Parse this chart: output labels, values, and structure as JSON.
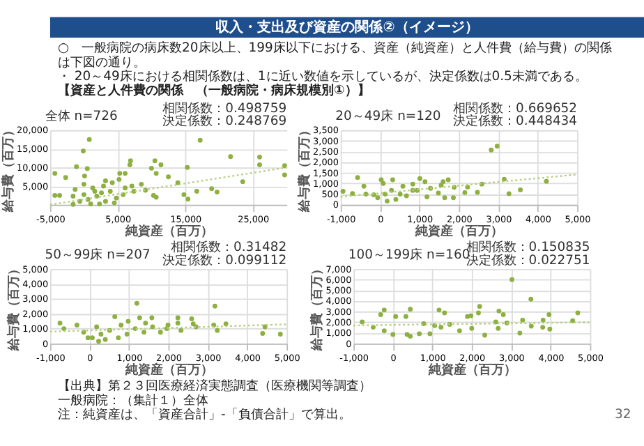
{
  "chart_data": [
    {
      "type": "other",
      "title": "収入・支出及び資産の関係②（イメージ）",
      "annotations": [
        "○　一般病院の病床数20床以上、199床以下における、資産（純資産）と人件費（給与費）の関係は下図の通り。",
        "・ 20～49床における相関係数は、1に近い数値を示しているが、決定係数は0.5未満である。",
        "【資産と人件費の関係　（一般病院・病床規模別①）】",
        "【出典】第２３回医療経済実態調査（医療機関等調査）",
        "一般病院：（集計１）全体",
        "注：純資産は、「資産合計」-「負債合計」で算出。",
        "32"
      ]
    },
    {
      "type": "scatter",
      "title": "全体 n=726",
      "annotations": [
        "相関係数：0.498759",
        "決定係数：0.248769"
      ],
      "xlabel": "純資産（百万）",
      "ylabel": "給与費（百万）",
      "xlim": [
        -5000,
        30000
      ],
      "xticks": [
        {
          "value": -5000,
          "label": "-5,000"
        },
        {
          "value": 5000,
          "label": "5,000"
        },
        {
          "value": 15000,
          "label": "15,000"
        },
        {
          "value": 25000,
          "label": "25,000"
        }
      ],
      "ylim": [
        0,
        20000
      ],
      "yticks": [
        {
          "value": 5000,
          "label": "5,000"
        },
        {
          "value": 10000,
          "label": "10,000"
        },
        {
          "value": 15000,
          "label": "15,000"
        },
        {
          "value": 20000,
          "label": "20,000"
        }
      ],
      "grid": true,
      "series": [
        {
          "type": "scatter",
          "color": "#8db040",
          "marker": "circle",
          "x": [
            800,
            -100,
            17200,
            -4300,
            -2700,
            -4300,
            -3600,
            21700,
            26000,
            26000,
            29700,
            29700,
            15300,
            23500,
            18900,
            19700,
            16700,
            14800,
            15400,
            13900,
            12500,
            10500,
            11400,
            10000,
            10700,
            10300,
            10700,
            6900,
            6800,
            5300,
            6100,
            8500,
            9100,
            7400,
            -1100,
            500,
            100,
            5200,
            3200,
            -600,
            600,
            1900,
            2600,
            3900,
            1300,
            0,
            -1300,
            -1600,
            3200,
            4800,
            5800,
            -1600,
            1000,
            2300,
            4500,
            0,
            1600,
            2900,
            4200,
            6100,
            7100
          ],
          "values": [
            17500,
            14400,
            17300,
            8400,
            7300,
            2500,
            2500,
            12900,
            12800,
            10700,
            10500,
            8000,
            10000,
            6200,
            4300,
            3400,
            3600,
            2700,
            1500,
            5900,
            7500,
            11800,
            10700,
            9800,
            8400,
            2500,
            2000,
            11800,
            10700,
            8400,
            8400,
            5500,
            3900,
            3600,
            10200,
            9700,
            7700,
            6800,
            6400,
            900,
            1400,
            2300,
            3200,
            3600,
            4500,
            5500,
            4100,
            2300,
            900,
            1800,
            2700,
            100,
            200,
            200,
            500,
            2700,
            3600,
            5000,
            5900,
            4500,
            5000
          ]
        },
        {
          "type": "line",
          "color": "#b5cf7e",
          "line_style": "dotted",
          "x": [
            -5000,
            30000
          ],
          "values": [
            0,
            10000
          ]
        }
      ]
    },
    {
      "type": "scatter",
      "title": "20～49床 n=120",
      "annotations": [
        "相関係数：0.669652",
        "決定係数：0.448434"
      ],
      "xlabel": "純資産（百万）",
      "ylabel": "給与費（百万）",
      "xlim": [
        -1000,
        5000
      ],
      "xticks": [
        {
          "value": -1000,
          "label": "-1,000"
        },
        0,
        {
          "value": 1000,
          "label": "1,000"
        },
        {
          "value": 2000,
          "label": "2,000"
        },
        {
          "value": 3000,
          "label": "3,000"
        },
        {
          "value": 4000,
          "label": "4,000"
        },
        {
          "value": 5000,
          "label": "5,000"
        }
      ],
      "ylim": [
        0,
        3500
      ],
      "yticks": [
        0,
        500,
        {
          "value": 1000,
          "label": "1,000"
        },
        {
          "value": 1500,
          "label": "1,500"
        },
        {
          "value": 2000,
          "label": "2,000"
        },
        {
          "value": 2500,
          "label": "2,500"
        },
        {
          "value": 3000,
          "label": "3,000"
        },
        {
          "value": 3500,
          "label": "3,500"
        }
      ],
      "grid": true,
      "series": [
        {
          "type": "scatter",
          "color": "#8db040",
          "marker": "circle",
          "x": [
            -940,
            -700,
            -570,
            -410,
            2820,
            2970,
            4220,
            3150,
            3270,
            3560,
            2580,
            2220,
            2470,
            2150,
            1880,
            1860,
            1640,
            1550,
            1600,
            1730,
            1480,
            1280,
            1010,
            1140,
            1190,
            830,
            580,
            320,
            30,
            80,
            510,
            180,
            -60,
            -160,
            400,
            290,
            670,
            130,
            830,
            -360,
            940
          ],
          "values": [
            630,
            530,
            1280,
            870,
            2570,
            2750,
            1100,
            1200,
            520,
            700,
            970,
            830,
            580,
            570,
            820,
            330,
            330,
            920,
            1080,
            1170,
            550,
            770,
            1230,
            1080,
            370,
            670,
            870,
            1170,
            1170,
            1000,
            500,
            170,
            330,
            470,
            250,
            670,
            420,
            500,
            970,
            500,
            670
          ]
        },
        {
          "type": "line",
          "color": "#b5cf7e",
          "line_style": "dotted",
          "x": [
            -1000,
            5000
          ],
          "values": [
            370,
            1420
          ]
        }
      ]
    },
    {
      "type": "scatter",
      "title": "50～99床 n=207",
      "annotations": [
        "相関係数：0.31482",
        "決定係数：0.099112"
      ],
      "xlabel": "純資産（百万）",
      "ylabel": "給与費（百万）",
      "xlim": [
        -1000,
        5000
      ],
      "xticks": [
        {
          "value": -1000,
          "label": "-1,000"
        },
        0,
        {
          "value": 1000,
          "label": "1,000"
        },
        {
          "value": 2000,
          "label": "2,000"
        },
        {
          "value": 3000,
          "label": "3,000"
        },
        {
          "value": 4000,
          "label": "4,000"
        },
        {
          "value": 5000,
          "label": "5,000"
        }
      ],
      "ylim": [
        0,
        5000
      ],
      "yticks": [
        0,
        {
          "value": 1000,
          "label": "1,000"
        },
        {
          "value": 2000,
          "label": "2,000"
        },
        {
          "value": 3000,
          "label": "3,000"
        },
        {
          "value": 4000,
          "label": "4,000"
        },
        {
          "value": 5000,
          "label": "5,000"
        }
      ],
      "grid": true,
      "series": [
        {
          "type": "scatter",
          "color": "#8db040",
          "marker": "circle",
          "x": [
            1200,
            3180,
            640,
            1270,
            1580,
            2240,
            2590,
            2240,
            2630,
            980,
            1420,
            3150,
            3460,
            3240,
            4450,
            4390,
            4840,
            2320,
            1800,
            1960,
            -750,
            -650,
            -320,
            -150,
            70,
            290,
            180,
            510,
            730,
            950,
            1160,
            1380,
            1600,
            400,
            230,
            -40,
            800,
            1990,
            2700
          ],
          "values": [
            2700,
            2510,
            1800,
            1730,
            1730,
            1730,
            1660,
            1370,
            1320,
            1490,
            1370,
            1240,
            1320,
            880,
            1120,
            680,
            630,
            880,
            760,
            1000,
            1370,
            1000,
            1240,
            760,
            390,
            630,
            1120,
            880,
            390,
            630,
            1000,
            760,
            1120,
            270,
            150,
            390,
            1240,
            1240,
            1120
          ]
        },
        {
          "type": "line",
          "color": "#b5cf7e",
          "line_style": "dotted",
          "x": [
            -1000,
            5000
          ],
          "values": [
            800,
            1290
          ]
        }
      ]
    },
    {
      "type": "scatter",
      "title": "100～199床 n=160",
      "annotations": [
        "相関係数：0.150835",
        "決定係数：0.022751"
      ],
      "xlabel": "純資産（百万）",
      "ylabel": "給与費（百万）",
      "xlim": [
        -1000,
        5000
      ],
      "xticks": [
        {
          "value": -1000,
          "label": "-1,000"
        },
        0,
        {
          "value": 1000,
          "label": "1,000"
        },
        {
          "value": 2000,
          "label": "2,000"
        },
        {
          "value": 3000,
          "label": "3,000"
        },
        {
          "value": 4000,
          "label": "4,000"
        },
        {
          "value": 5000,
          "label": "5,000"
        }
      ],
      "ylim": [
        0,
        7000
      ],
      "yticks": [
        0,
        {
          "value": 1000,
          "label": "1,000"
        },
        {
          "value": 2000,
          "label": "2,000"
        },
        {
          "value": 3000,
          "label": "3,000"
        },
        {
          "value": 4000,
          "label": "4,000"
        },
        {
          "value": 5000,
          "label": "5,000"
        },
        {
          "value": 6000,
          "label": "6,000"
        },
        {
          "value": 7000,
          "label": "7,000"
        }
      ],
      "grid": true,
      "series": [
        {
          "type": "scatter",
          "color": "#8db040",
          "marker": "circle",
          "x": [
            3020,
            3500,
            440,
            -220,
            1170,
            1310,
            2200,
            2170,
            2690,
            4690,
            3960,
            3810,
            3290,
            4560,
            2800,
            1890,
            1980,
            330,
            70,
            -310,
            2890,
            2610,
            3220,
            2330,
            3510,
            3800,
            3980,
            2670,
            2000,
            1690,
            1060,
            780,
            670,
            440,
            360,
            0,
            -220,
            -500,
            -780,
            1220,
            1440,
            940
          ],
          "values": [
            6000,
            4170,
            3220,
            3150,
            3150,
            2880,
            3490,
            2880,
            3050,
            2880,
            2710,
            2200,
            2200,
            2140,
            2710,
            2540,
            2610,
            2540,
            2540,
            2710,
            1930,
            2030,
            980,
            780,
            1630,
            1530,
            1360,
            1420,
            1420,
            1190,
            1690,
            1860,
            920,
            680,
            850,
            850,
            1190,
            1530,
            2030,
            1530,
            1800,
            920
          ]
        },
        {
          "type": "line",
          "color": "#b5cf7e",
          "line_style": "dotted",
          "x": [
            -1000,
            5000
          ],
          "values": [
            1700,
            2000
          ]
        }
      ]
    }
  ]
}
